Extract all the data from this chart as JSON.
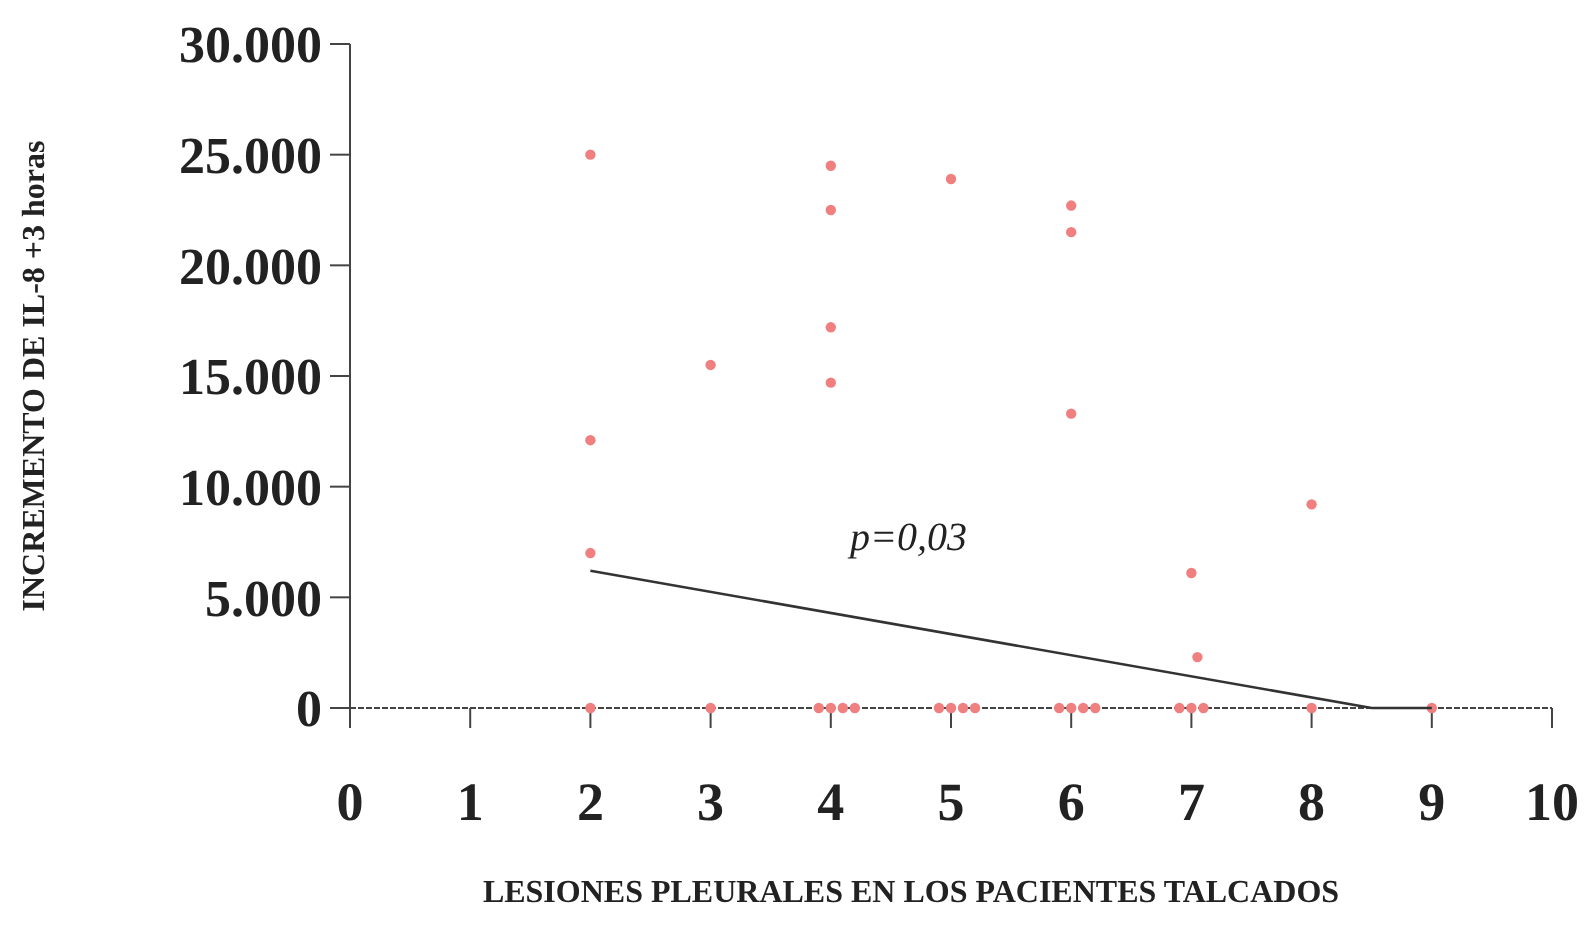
{
  "chart_data": {
    "type": "scatter",
    "xlabel": "LESIONES PLEURALES EN LOS PACIENTES TALCADOS",
    "ylabel": "INCREMENTO DE IL-8 +3 horas",
    "xlim": [
      0,
      10
    ],
    "ylim": [
      0,
      30000
    ],
    "xticks": [
      0,
      1,
      2,
      3,
      4,
      5,
      6,
      7,
      8,
      9,
      10
    ],
    "yticks": [
      {
        "value": 0,
        "label": "0"
      },
      {
        "value": 5000,
        "label": "5.000"
      },
      {
        "value": 10000,
        "label": "10.000"
      },
      {
        "value": 15000,
        "label": "15.000"
      },
      {
        "value": 20000,
        "label": "20.000"
      },
      {
        "value": 25000,
        "label": "25.000"
      },
      {
        "value": 30000,
        "label": "30.000"
      }
    ],
    "grid": false,
    "annotations": [
      "p=0,03"
    ],
    "series": [
      {
        "marker": "circle",
        "color": "#f08080",
        "x": [
          2,
          2,
          2,
          2,
          3,
          3,
          4,
          4,
          4,
          4,
          3.9,
          4,
          4.1,
          4.2,
          5,
          4.9,
          5,
          5.1,
          5.2,
          6,
          6,
          6,
          5.9,
          6,
          6.1,
          6.2,
          7,
          7.05,
          6.9,
          7,
          7.1,
          8,
          8,
          9
        ],
        "values": [
          25000,
          12100,
          7000,
          0,
          15500,
          0,
          24500,
          22500,
          17200,
          14700,
          0,
          0,
          0,
          0,
          23900,
          0,
          0,
          0,
          0,
          22700,
          21500,
          13300,
          0,
          0,
          0,
          0,
          6100,
          2300,
          0,
          0,
          0,
          9200,
          0,
          0
        ]
      },
      {
        "type": "line",
        "marker": "none",
        "color": "#333333",
        "x": [
          2,
          8.5,
          9
        ],
        "values": [
          6200,
          0,
          0
        ]
      }
    ]
  }
}
